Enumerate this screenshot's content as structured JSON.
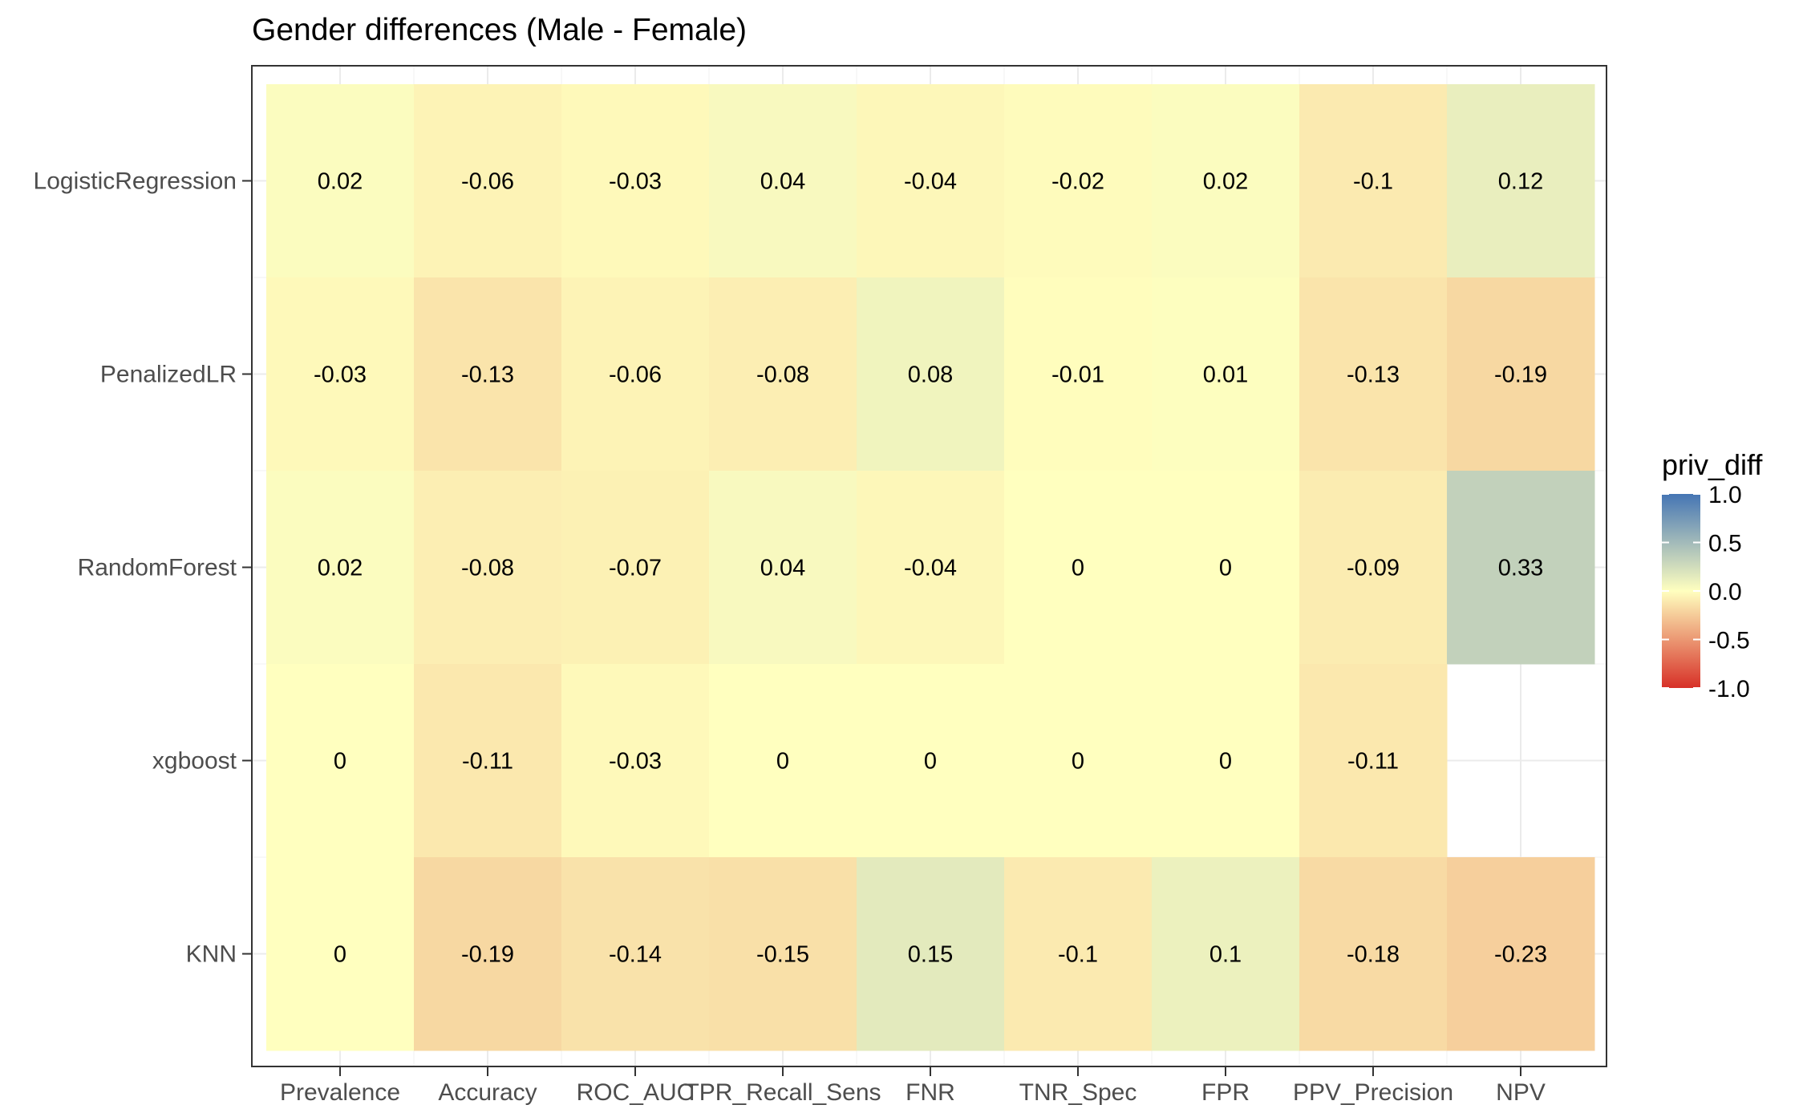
{
  "chart_data": {
    "type": "heatmap",
    "title": "Gender differences (Male - Female)",
    "xlabel": "",
    "ylabel": "",
    "columns": [
      "Prevalence",
      "Accuracy",
      "ROC_AUC",
      "TPR_Recall_Sens",
      "FNR",
      "TNR_Spec",
      "FPR",
      "PPV_Precision",
      "NPV"
    ],
    "rows": [
      "LogisticRegression",
      "PenalizedLR",
      "RandomForest",
      "xgboost",
      "KNN"
    ],
    "values": [
      [
        0.02,
        -0.06,
        -0.03,
        0.04,
        -0.04,
        -0.02,
        0.02,
        -0.1,
        0.12
      ],
      [
        -0.03,
        -0.13,
        -0.06,
        -0.08,
        0.08,
        -0.01,
        0.01,
        -0.13,
        -0.19
      ],
      [
        0.02,
        -0.08,
        -0.07,
        0.04,
        -0.04,
        0,
        0,
        -0.09,
        0.33
      ],
      [
        0,
        -0.11,
        -0.03,
        0,
        0,
        0,
        0,
        -0.11,
        null
      ],
      [
        0,
        -0.19,
        -0.14,
        -0.15,
        0.15,
        -0.1,
        0.1,
        -0.18,
        -0.23
      ]
    ],
    "legend": {
      "title": "priv_diff",
      "ticks": [
        "1.0",
        "0.5",
        "0.0",
        "-0.5",
        "-1.0"
      ],
      "limits": [
        -1,
        1
      ],
      "position": "right",
      "colors": {
        "low": "#d73027",
        "mid": "#ffffbf",
        "high": "#4575b4"
      }
    },
    "grid": true
  }
}
